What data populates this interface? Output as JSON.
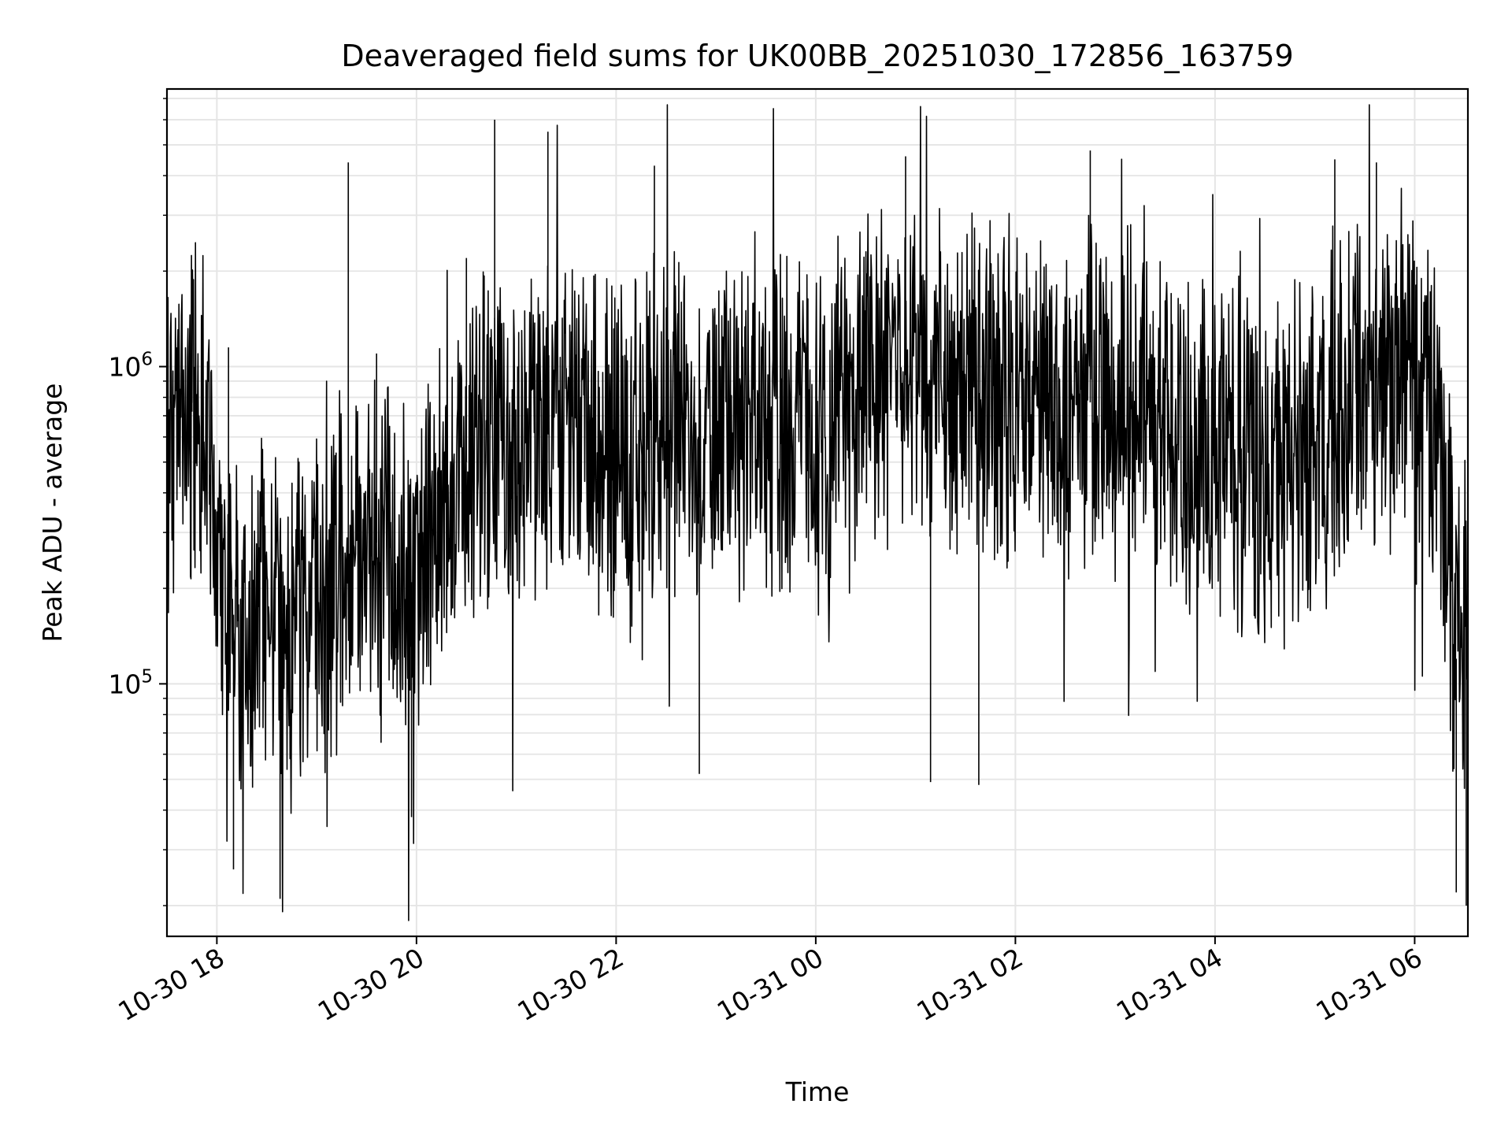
{
  "chart_data": {
    "type": "line",
    "title": "Deaveraged field sums for UK00BB_20251030_172856_163759",
    "xlabel": "Time",
    "ylabel": "Peak ADU - average",
    "x_scale": "time",
    "y_scale": "log",
    "xlim": [
      "2025-10-30T17:30",
      "2025-10-31T06:32"
    ],
    "ylim": [
      16000,
      7500000
    ],
    "x_ticks": [
      {
        "value": "2025-10-30T18:00",
        "label": "10-30 18"
      },
      {
        "value": "2025-10-30T20:00",
        "label": "10-30 20"
      },
      {
        "value": "2025-10-30T22:00",
        "label": "10-30 22"
      },
      {
        "value": "2025-10-31T00:00",
        "label": "10-31 00"
      },
      {
        "value": "2025-10-31T02:00",
        "label": "10-31 02"
      },
      {
        "value": "2025-10-31T04:00",
        "label": "10-31 04"
      },
      {
        "value": "2025-10-31T06:00",
        "label": "10-31 06"
      }
    ],
    "y_major_ticks": [
      {
        "value": 100000,
        "base": "10",
        "exp": "5"
      },
      {
        "value": 1000000,
        "base": "10",
        "exp": "6"
      }
    ],
    "grid": true,
    "line_color": "#000000",
    "grid_color": "#e5e5e5",
    "series": [
      {
        "x": [
          "2025-10-30T17:30",
          "2025-10-30T17:40",
          "2025-10-30T17:50",
          "2025-10-30T18:00",
          "2025-10-30T18:15",
          "2025-10-30T18:30",
          "2025-10-30T18:45",
          "2025-10-30T19:00",
          "2025-10-30T19:15",
          "2025-10-30T19:30",
          "2025-10-30T19:45",
          "2025-10-30T20:00",
          "2025-10-30T20:15",
          "2025-10-30T20:30",
          "2025-10-30T20:45",
          "2025-10-30T21:00",
          "2025-10-30T21:30",
          "2025-10-30T22:00",
          "2025-10-30T22:30",
          "2025-10-30T23:00",
          "2025-10-30T23:30",
          "2025-10-31T00:00",
          "2025-10-31T00:30",
          "2025-10-31T01:00",
          "2025-10-31T01:30",
          "2025-10-31T02:00",
          "2025-10-31T02:30",
          "2025-10-31T03:00",
          "2025-10-31T03:30",
          "2025-10-31T04:00",
          "2025-10-31T04:30",
          "2025-10-31T05:00",
          "2025-10-31T05:30",
          "2025-10-31T06:00",
          "2025-10-31T06:15",
          "2025-10-31T06:25",
          "2025-10-31T06:32"
        ],
        "y": [
          700000,
          650000,
          800000,
          200000,
          150000,
          180000,
          140000,
          160000,
          220000,
          300000,
          250000,
          200000,
          350000,
          500000,
          600000,
          550000,
          650000,
          600000,
          700000,
          650000,
          700000,
          600000,
          900000,
          950000,
          800000,
          900000,
          700000,
          850000,
          700000,
          550000,
          480000,
          550000,
          900000,
          1000000,
          500000,
          120000,
          160000
        ],
        "spikes": [
          {
            "x": "2025-10-30T17:45",
            "y": 2000000
          },
          {
            "x": "2025-10-30T18:07",
            "y": 1150000
          },
          {
            "x": "2025-10-30T18:10",
            "y": 26000
          },
          {
            "x": "2025-10-30T18:38",
            "y": 21000
          },
          {
            "x": "2025-10-30T19:19",
            "y": 4400000
          },
          {
            "x": "2025-10-30T19:36",
            "y": 1100000
          },
          {
            "x": "2025-10-30T19:57",
            "y": 38000
          },
          {
            "x": "2025-10-30T20:30",
            "y": 2200000
          },
          {
            "x": "2025-10-30T20:47",
            "y": 6000000
          },
          {
            "x": "2025-10-30T21:19",
            "y": 5500000
          },
          {
            "x": "2025-10-30T22:23",
            "y": 4300000
          },
          {
            "x": "2025-10-30T22:50",
            "y": 52000
          },
          {
            "x": "2025-10-31T00:54",
            "y": 4600000
          },
          {
            "x": "2025-10-31T01:09",
            "y": 49000
          },
          {
            "x": "2025-10-31T01:38",
            "y": 48000
          },
          {
            "x": "2025-10-31T02:45",
            "y": 4800000
          },
          {
            "x": "2025-10-31T05:12",
            "y": 4500000
          },
          {
            "x": "2025-10-31T05:37",
            "y": 4400000
          },
          {
            "x": "2025-10-31T06:25",
            "y": 22000
          },
          {
            "x": "2025-10-31T06:31",
            "y": 20000
          }
        ]
      }
    ]
  }
}
